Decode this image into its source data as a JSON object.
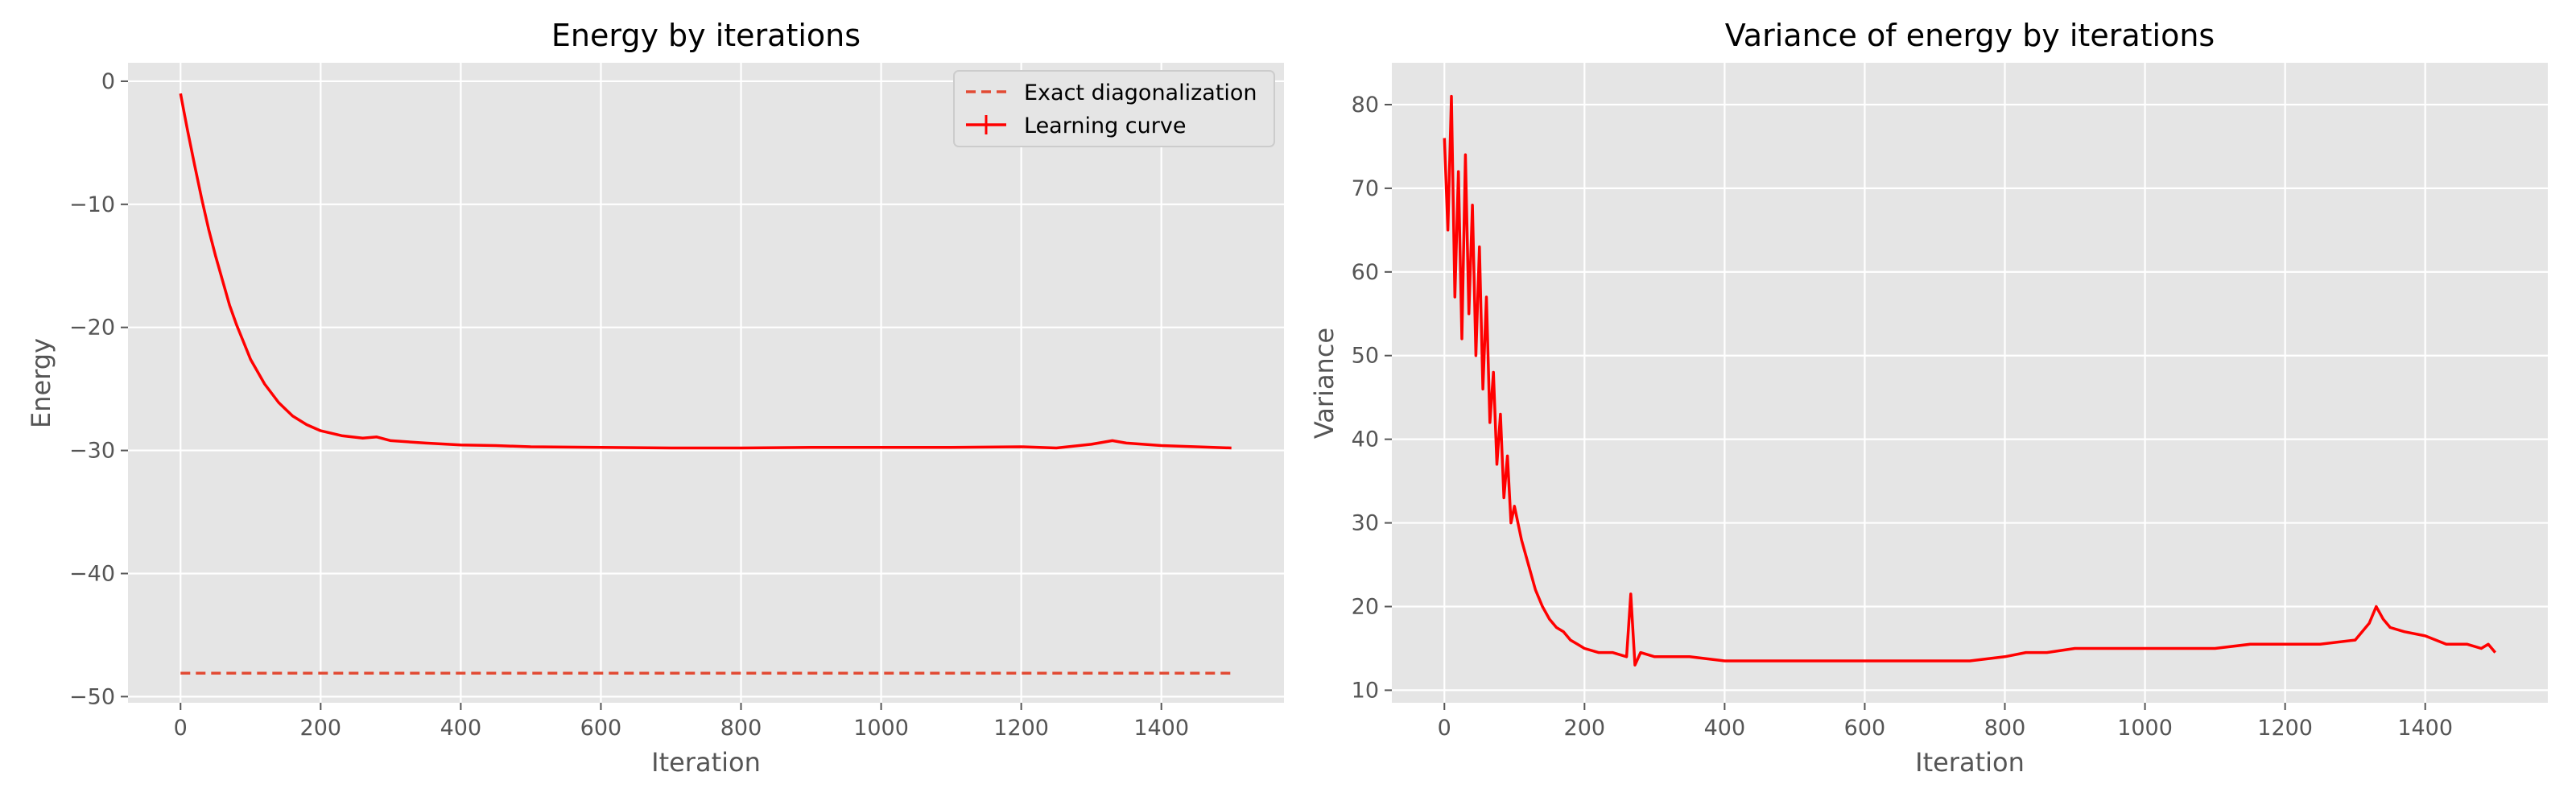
{
  "chart_data": [
    {
      "type": "line",
      "title": "Energy by iterations",
      "xlabel": "Iteration",
      "ylabel": "Energy",
      "xlim": [
        -75,
        1575
      ],
      "ylim": [
        -50.5,
        1.5
      ],
      "xticks": [
        0,
        200,
        400,
        600,
        800,
        1000,
        1200,
        1400
      ],
      "xtick_labels": [
        "0",
        "200",
        "400",
        "600",
        "800",
        "1000",
        "1200",
        "1400"
      ],
      "yticks": [
        0,
        -10,
        -20,
        -30,
        -40,
        -50
      ],
      "ytick_labels": [
        "0",
        "−10",
        "−20",
        "−30",
        "−40",
        "−50"
      ],
      "grid": true,
      "legend_position": "top-right",
      "series": [
        {
          "name": "Exact diagonalization",
          "style": "dashed",
          "color": "#e24a33",
          "x": [
            0,
            1500
          ],
          "y": [
            -48.1,
            -48.1
          ]
        },
        {
          "name": "Learning curve",
          "style": "solid",
          "color": "#ff0000",
          "x": [
            0,
            5,
            10,
            20,
            30,
            40,
            50,
            60,
            70,
            80,
            90,
            100,
            120,
            140,
            160,
            180,
            200,
            230,
            260,
            280,
            300,
            350,
            400,
            450,
            500,
            600,
            700,
            800,
            900,
            1000,
            1100,
            1200,
            1250,
            1300,
            1330,
            1350,
            1400,
            1450,
            1500
          ],
          "y": [
            -1.0,
            -2.5,
            -4.0,
            -6.8,
            -9.5,
            -12.0,
            -14.2,
            -16.2,
            -18.2,
            -19.8,
            -21.2,
            -22.6,
            -24.6,
            -26.1,
            -27.2,
            -27.9,
            -28.4,
            -28.8,
            -29.0,
            -28.9,
            -29.2,
            -29.4,
            -29.55,
            -29.6,
            -29.7,
            -29.75,
            -29.8,
            -29.8,
            -29.75,
            -29.75,
            -29.75,
            -29.7,
            -29.8,
            -29.5,
            -29.2,
            -29.4,
            -29.6,
            -29.7,
            -29.8
          ]
        }
      ]
    },
    {
      "type": "line",
      "title": "Variance of energy by iterations",
      "xlabel": "Iteration",
      "ylabel": "Variance",
      "xlim": [
        -75,
        1575
      ],
      "ylim": [
        8.5,
        85
      ],
      "xticks": [
        0,
        200,
        400,
        600,
        800,
        1000,
        1200,
        1400
      ],
      "xtick_labels": [
        "0",
        "200",
        "400",
        "600",
        "800",
        "1000",
        "1200",
        "1400"
      ],
      "yticks": [
        10,
        20,
        30,
        40,
        50,
        60,
        70,
        80
      ],
      "ytick_labels": [
        "10",
        "20",
        "30",
        "40",
        "50",
        "60",
        "70",
        "80"
      ],
      "grid": true,
      "series": [
        {
          "color": "#ff0000",
          "x": [
            0,
            5,
            10,
            15,
            20,
            25,
            30,
            35,
            40,
            45,
            50,
            55,
            60,
            65,
            70,
            75,
            80,
            85,
            90,
            95,
            100,
            110,
            120,
            130,
            140,
            150,
            160,
            170,
            180,
            190,
            200,
            220,
            240,
            260,
            266,
            272,
            280,
            300,
            350,
            400,
            450,
            500,
            550,
            600,
            650,
            700,
            750,
            800,
            830,
            860,
            900,
            950,
            1000,
            1050,
            1100,
            1150,
            1200,
            1250,
            1300,
            1320,
            1330,
            1340,
            1350,
            1370,
            1400,
            1430,
            1460,
            1480,
            1490,
            1500
          ],
          "y": [
            76,
            65,
            81,
            57,
            72,
            52,
            74,
            55,
            68,
            50,
            63,
            46,
            57,
            42,
            48,
            37,
            43,
            33,
            38,
            30,
            32,
            28,
            25,
            22,
            20,
            18.5,
            17.5,
            17,
            16,
            15.5,
            15,
            14.5,
            14.5,
            14,
            21.5,
            13,
            14.5,
            14,
            14,
            13.5,
            13.5,
            13.5,
            13.5,
            13.5,
            13.5,
            13.5,
            13.5,
            14,
            14.5,
            14.5,
            15,
            15,
            15,
            15,
            15,
            15.5,
            15.5,
            15.5,
            16,
            18,
            20,
            18.5,
            17.5,
            17,
            16.5,
            15.5,
            15.5,
            15,
            15.5,
            14.5
          ]
        }
      ]
    }
  ]
}
